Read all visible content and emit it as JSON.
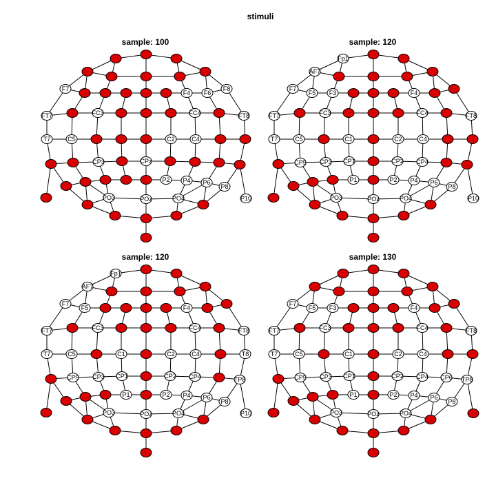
{
  "figure": {
    "title": "stimuli",
    "active_color": "#d80000",
    "inactive_color": "#ffffff",
    "edge_color": "#000000"
  },
  "panels": [
    {
      "title": "sample: 100",
      "inactive": [
        "F7",
        "FT7",
        "T7",
        "CP3",
        "CPz",
        "C5",
        "F4",
        "F6",
        "F8",
        "FT8",
        "PO3",
        "PO4",
        "POz",
        "C2",
        "FC4",
        "FC3",
        "P2",
        "P4",
        "P6",
        "P8",
        "P10",
        "C4"
      ]
    },
    {
      "title": "sample: 120",
      "inactive": [
        "Fp1",
        "AF7",
        "F7",
        "F5",
        "FT7",
        "T7",
        "C5",
        "CP5",
        "CP3",
        "P1",
        "P2",
        "P4",
        "P6",
        "P8",
        "P10",
        "PO3",
        "PO4",
        "POz",
        "FC3",
        "C1",
        "C2",
        "CP1",
        "CP4",
        "F3",
        "F4",
        "FC4",
        "C4",
        "CP2",
        "FT8"
      ]
    },
    {
      "title": "sample: 120",
      "inactive": [
        "Fp1",
        "AF7",
        "F7",
        "F5",
        "FT7",
        "T7",
        "C5",
        "CP5",
        "CP3",
        "P2",
        "P1",
        "P4",
        "P6",
        "P8",
        "P10",
        "PO3",
        "PO4",
        "POz",
        "FC3",
        "C1",
        "C2",
        "C4",
        "CP1",
        "CP4",
        "FC4",
        "FT8",
        "F4",
        "CP2",
        "TP8",
        "T8"
      ]
    },
    {
      "title": "sample: 130",
      "inactive": [
        "F7",
        "F5",
        "FT7",
        "T7",
        "C5",
        "CP5",
        "CP3",
        "P1",
        "P2",
        "P4",
        "P6",
        "P8",
        "PO3",
        "PO4",
        "POz",
        "FC3",
        "C1",
        "C2",
        "C4",
        "CP1",
        "CP4",
        "FC4",
        "CP2",
        "CP6",
        "F4",
        "F3",
        "FT8",
        "TP8"
      ]
    }
  ]
}
